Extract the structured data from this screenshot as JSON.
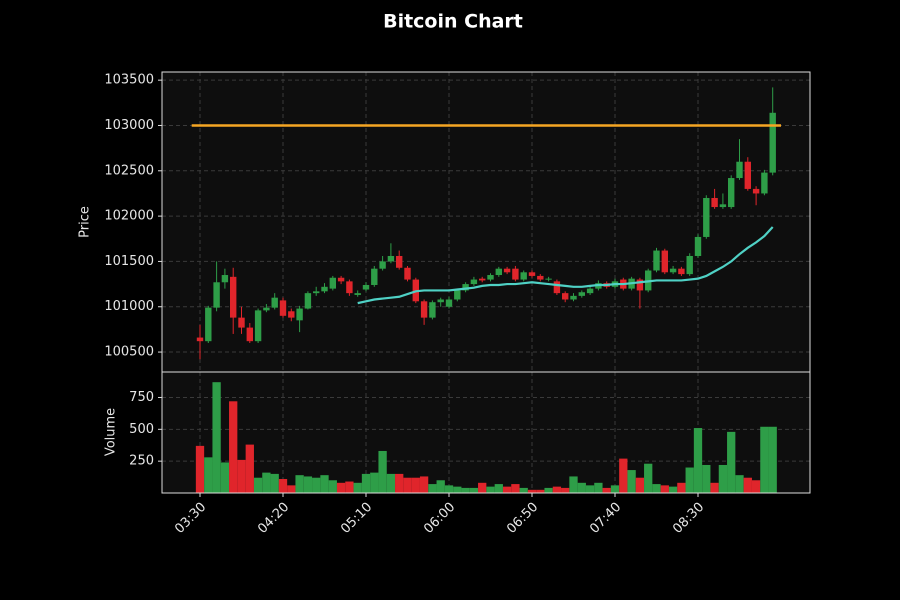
{
  "chart_data": {
    "type": "candlestick",
    "title": "Bitcoin Chart",
    "ylabel": "Price",
    "categories": [
      "03:30",
      "03:35",
      "03:40",
      "03:45",
      "03:50",
      "03:55",
      "04:00",
      "04:05",
      "04:10",
      "04:15",
      "04:20",
      "04:25",
      "04:30",
      "04:35",
      "04:40",
      "04:45",
      "04:50",
      "04:55",
      "05:00",
      "05:05",
      "05:10",
      "05:15",
      "05:20",
      "05:25",
      "05:30",
      "05:35",
      "05:40",
      "05:45",
      "05:50",
      "05:55",
      "06:00",
      "06:05",
      "06:10",
      "06:15",
      "06:20",
      "06:25",
      "06:30",
      "06:35",
      "06:40",
      "06:45",
      "06:50",
      "06:55",
      "07:00",
      "07:05",
      "07:10",
      "07:15",
      "07:20",
      "07:25",
      "07:30",
      "07:35",
      "07:40",
      "07:45",
      "07:50",
      "07:55",
      "08:00",
      "08:05",
      "08:10",
      "08:15",
      "08:20",
      "08:25",
      "08:30",
      "08:35",
      "08:40",
      "08:45",
      "08:50",
      "08:55",
      "09:00",
      "09:05",
      "09:10",
      "09:15"
    ],
    "xticks": [
      "03:30",
      "04:20",
      "05:10",
      "06:00",
      "06:50",
      "07:40",
      "08:30"
    ],
    "open": [
      100660,
      100620,
      100990,
      101270,
      101330,
      100880,
      100770,
      100620,
      100960,
      100990,
      101070,
      100950,
      100850,
      100980,
      101150,
      101170,
      101200,
      101320,
      101280,
      101130,
      101190,
      101240,
      101420,
      101500,
      101560,
      101430,
      101300,
      101060,
      100880,
      101050,
      101000,
      101080,
      101180,
      101250,
      101310,
      101300,
      101350,
      101420,
      101420,
      101300,
      101380,
      101340,
      101300,
      101280,
      101150,
      101080,
      101120,
      101150,
      101200,
      101260,
      101220,
      101300,
      101200,
      101300,
      101180,
      101400,
      101620,
      101380,
      101420,
      101360,
      101560,
      101770,
      102200,
      102100,
      102100,
      102420,
      102600,
      102300,
      102250,
      102480
    ],
    "high": [
      100800,
      101010,
      101500,
      101420,
      101430,
      101000,
      100820,
      100980,
      101030,
      101150,
      101100,
      100980,
      101010,
      101170,
      101220,
      101260,
      101340,
      101340,
      101300,
      101180,
      101270,
      101450,
      101560,
      101700,
      101620,
      101450,
      101320,
      101080,
      101070,
      101100,
      101110,
      101200,
      101270,
      101330,
      101330,
      101370,
      101440,
      101440,
      101450,
      101400,
      101400,
      101360,
      101330,
      101300,
      101170,
      101150,
      101180,
      101230,
      101290,
      101280,
      101310,
      101320,
      101330,
      101320,
      101420,
      101650,
      101640,
      101450,
      101440,
      101590,
      101800,
      102230,
      102300,
      102250,
      102450,
      102850,
      102650,
      102330,
      102510,
      103420
    ],
    "low": [
      100420,
      100600,
      100950,
      101200,
      100700,
      100700,
      100600,
      100600,
      100940,
      100970,
      100880,
      100840,
      100720,
      100970,
      101120,
      101150,
      101180,
      101250,
      101120,
      101110,
      101170,
      101220,
      101400,
      101480,
      101410,
      101280,
      101040,
      100800,
      100860,
      101000,
      100980,
      101060,
      101160,
      101230,
      101270,
      101280,
      101330,
      101360,
      101280,
      101280,
      101320,
      101280,
      101280,
      101130,
      101050,
      101060,
      101100,
      101130,
      101180,
      101200,
      101200,
      101180,
      101180,
      100980,
      101160,
      101380,
      101360,
      101360,
      101340,
      101340,
      101540,
      101750,
      102080,
      102080,
      102080,
      102400,
      102280,
      102120,
      102230,
      102450
    ],
    "close": [
      100620,
      100990,
      101270,
      101350,
      100880,
      100770,
      100620,
      100960,
      100990,
      101100,
      100900,
      100880,
      100980,
      101150,
      101170,
      101220,
      101320,
      101280,
      101150,
      101150,
      101240,
      101420,
      101500,
      101560,
      101430,
      101300,
      101060,
      100880,
      101050,
      101080,
      101080,
      101180,
      101250,
      101300,
      101290,
      101350,
      101420,
      101380,
      101300,
      101380,
      101340,
      101300,
      101310,
      101150,
      101080,
      101120,
      101160,
      101200,
      101260,
      101220,
      101280,
      101200,
      101310,
      101180,
      101400,
      101620,
      101380,
      101420,
      101360,
      101560,
      101770,
      102200,
      102100,
      102130,
      102420,
      102600,
      102300,
      102250,
      102480,
      103140
    ],
    "up_color": "#2e9e48",
    "down_color": "#e0252b",
    "moving_average": {
      "color": "#4fd1c5",
      "values": [
        null,
        null,
        null,
        null,
        null,
        null,
        null,
        null,
        null,
        null,
        null,
        null,
        null,
        null,
        null,
        null,
        null,
        null,
        null,
        101040,
        101060,
        101080,
        101090,
        101100,
        101110,
        101140,
        101170,
        101180,
        101180,
        101180,
        101180,
        101190,
        101200,
        101210,
        101230,
        101240,
        101240,
        101250,
        101250,
        101260,
        101270,
        101260,
        101250,
        101240,
        101230,
        101220,
        101220,
        101230,
        101240,
        101240,
        101250,
        101250,
        101260,
        101270,
        101280,
        101290,
        101290,
        101290,
        101290,
        101300,
        101310,
        101340,
        101390,
        101440,
        101500,
        101580,
        101650,
        101710,
        101780,
        101880
      ]
    },
    "hline": {
      "value": 103000,
      "color": "#f5a623"
    },
    "ylim": [
      100280,
      103590
    ],
    "yticks": [
      100500,
      101000,
      101500,
      102000,
      102500,
      103000,
      103500
    ],
    "grid": true,
    "volume": {
      "ylabel": "Volume",
      "ylim": [
        0,
        950
      ],
      "yticks": [
        250,
        500,
        750
      ],
      "values": [
        370,
        280,
        870,
        240,
        720,
        260,
        380,
        120,
        160,
        150,
        110,
        60,
        140,
        130,
        120,
        140,
        100,
        80,
        90,
        80,
        150,
        160,
        330,
        150,
        150,
        120,
        120,
        130,
        70,
        100,
        60,
        50,
        40,
        40,
        80,
        50,
        70,
        50,
        70,
        40,
        25,
        25,
        40,
        50,
        40,
        130,
        80,
        60,
        80,
        40,
        60,
        270,
        180,
        120,
        230,
        70,
        60,
        50,
        80,
        200,
        510,
        220,
        80,
        220,
        480,
        140,
        120,
        100,
        520,
        520
      ]
    }
  }
}
